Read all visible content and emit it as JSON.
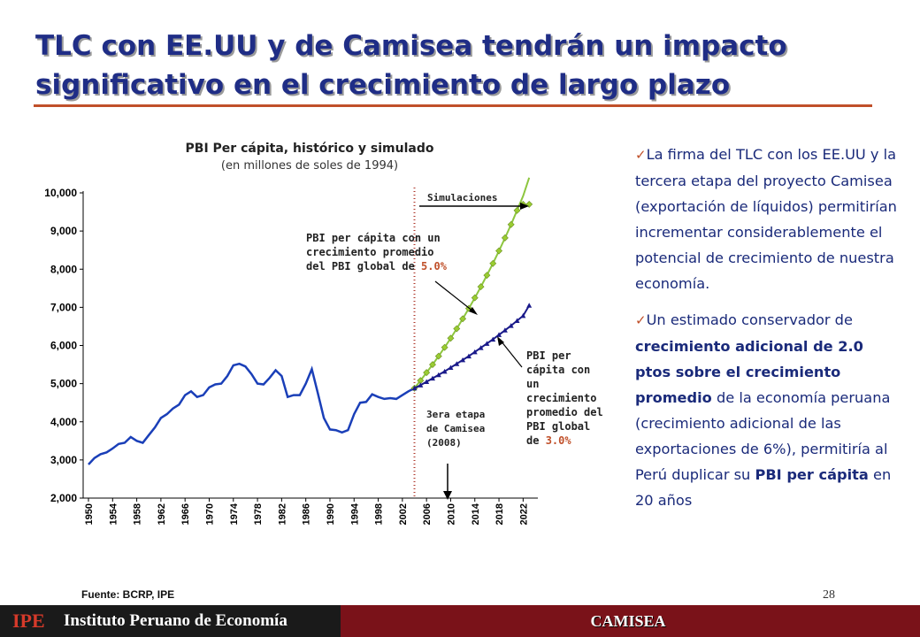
{
  "slide": {
    "title_line1": "TLC con EE.UU y de Camisea tendrán un impacto",
    "title_line2": "significativo en el crecimiento de largo plazo",
    "source": "Fuente: BCRP, IPE",
    "page_number": "28"
  },
  "footer": {
    "ipe": "IPE",
    "institute": "Instituto Peruano de Economía",
    "section": "CAMISEA"
  },
  "bullets": [
    [
      "La firma del TLC con los EE.UU y la tercera etapa del proyecto Camisea (exportación de líquidos) permitirían incrementar considerablemente el potencial de crecimiento de nuestra economía."
    ],
    [
      "Un estimado conservador de ",
      "crecimiento adicional de 2.0 ptos sobre el crecimiento promedio",
      " de la economía peruana (crecimiento adicional de las exportaciones de 6%), permitiría al Perú duplicar su ",
      "PBI per cápita",
      " en 20 años"
    ]
  ],
  "colors": {
    "title": "#1f2d86",
    "accent": "#c0502a",
    "historic": "#1a3fb8",
    "sim5": "#8dc63f",
    "sim3": "#1a1a8a",
    "footer": "#7a1219"
  },
  "chart_data": {
    "type": "line",
    "title": "PBI Per cápita, histórico y simulado",
    "subtitle": "(en millones de soles de 1994)",
    "xlabel": "",
    "ylabel": "",
    "ylim": [
      2000,
      10000
    ],
    "xlim": [
      1950,
      2024
    ],
    "y_ticks": [
      "2,000",
      "3,000",
      "4,000",
      "5,000",
      "6,000",
      "7,000",
      "8,000",
      "9,000",
      "10,000"
    ],
    "x_ticks": [
      "1950",
      "1954",
      "1958",
      "1962",
      "1966",
      "1970",
      "1974",
      "1978",
      "1982",
      "1986",
      "1990",
      "1994",
      "1998",
      "2002",
      "2006",
      "2010",
      "2014",
      "2018",
      "2022"
    ],
    "grid": false,
    "series": [
      {
        "x": [
          1950,
          1951,
          1952,
          1953,
          1954,
          1955,
          1956,
          1957,
          1958,
          1959,
          1960,
          1961,
          1962,
          1963,
          1964,
          1965,
          1966,
          1967,
          1968,
          1969,
          1970,
          1971,
          1972,
          1973,
          1974,
          1975,
          1976,
          1977,
          1978,
          1979,
          1980,
          1981,
          1982,
          1983,
          1984,
          1985,
          1986,
          1987,
          1988,
          1989,
          1990,
          1991,
          1992,
          1993,
          1994,
          1995,
          1996,
          1997,
          1998,
          1999,
          2000,
          2001,
          2002,
          2003,
          2004
        ],
        "y": [
          2880,
          3050,
          3150,
          3200,
          3300,
          3420,
          3450,
          3600,
          3500,
          3450,
          3650,
          3850,
          4100,
          4200,
          4350,
          4450,
          4700,
          4800,
          4650,
          4700,
          4900,
          4980,
          5000,
          5200,
          5480,
          5520,
          5450,
          5250,
          5000,
          4980,
          5150,
          5350,
          5200,
          4650,
          4700,
          4700,
          5000,
          5380,
          4750,
          4100,
          3800,
          3780,
          3720,
          3780,
          4200,
          4500,
          4520,
          4720,
          4650,
          4600,
          4620,
          4600,
          4700,
          4800,
          4880
        ]
      },
      {
        "name": "PBI per cápita con un crecimiento promedio del PBI global de 5.0%",
        "x": [
          2004,
          2005,
          2006,
          2007,
          2008,
          2009,
          2010,
          2011,
          2012,
          2013,
          2014,
          2015,
          2016,
          2017,
          2018,
          2019,
          2020,
          2021,
          2022,
          2023
        ],
        "y": [
          4880,
          5080,
          5290,
          5500,
          5720,
          5950,
          6190,
          6440,
          6700,
          6970,
          7250,
          7540,
          7840,
          8150,
          8480,
          8820,
          9170,
          9540,
          9920,
          10400
        ]
      },
      {
        "name": "PBI per cápita con un crecimiento promedio del PBI global de 3.0%",
        "x": [
          2004,
          2005,
          2006,
          2007,
          2008,
          2009,
          2010,
          2011,
          2012,
          2013,
          2014,
          2015,
          2016,
          2017,
          2018,
          2019,
          2020,
          2021,
          2022,
          2023
        ],
        "y": [
          4880,
          4960,
          5050,
          5140,
          5230,
          5320,
          5420,
          5520,
          5620,
          5720,
          5830,
          5940,
          6050,
          6160,
          6280,
          6400,
          6520,
          6650,
          6780,
          7050
        ]
      }
    ],
    "annotations": {
      "simulaciones": "Simulaciones",
      "sim5_label": [
        "PBI per cápita con un",
        "crecimiento promedio",
        "del PBI global de "
      ],
      "sim5_value": "5.0%",
      "sim3_label": [
        "PBI per",
        "cápita con",
        "un",
        "crecimiento",
        "promedio del",
        "PBI global",
        "de "
      ],
      "sim3_value": "3.0%",
      "camisea": [
        "3era etapa",
        "de Camisea",
        "(2008)"
      ]
    }
  }
}
